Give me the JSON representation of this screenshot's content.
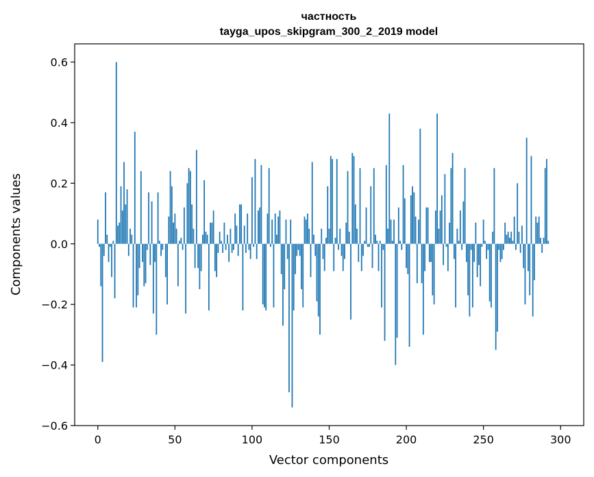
{
  "chart_data": {
    "type": "bar",
    "title_line1": "частность",
    "title_line2": "tayga_upos_skipgram_300_2_2019 model",
    "xlabel": "Vector components",
    "ylabel": "Components values",
    "xlim": [
      -15,
      315
    ],
    "ylim": [
      -0.6,
      0.66
    ],
    "xticks": [
      0,
      50,
      100,
      150,
      200,
      250,
      300
    ],
    "xtick_labels": [
      "0",
      "50",
      "100",
      "150",
      "200",
      "250",
      "300"
    ],
    "yticks": [
      -0.6,
      -0.4,
      -0.2,
      0.0,
      0.2,
      0.4,
      0.6
    ],
    "ytick_labels": [
      "−0.6",
      "−0.4",
      "−0.2",
      "0.0",
      "0.2",
      "0.4",
      "0.6"
    ],
    "bar_color": "#1f77b4",
    "grid": false,
    "values": [
      0.08,
      -0.01,
      -0.14,
      -0.39,
      -0.04,
      0.17,
      0.03,
      -0.06,
      -0.01,
      -0.11,
      0.01,
      -0.18,
      0.6,
      0.06,
      0.07,
      0.19,
      0.11,
      0.27,
      0.13,
      0.18,
      -0.04,
      0.05,
      0.03,
      -0.21,
      0.37,
      -0.21,
      -0.17,
      -0.08,
      0.24,
      -0.06,
      -0.14,
      -0.13,
      -0.02,
      0.17,
      -0.07,
      0.14,
      -0.23,
      -0.06,
      -0.3,
      0.17,
      0.01,
      -0.04,
      -0.02,
      0.0,
      -0.11,
      -0.2,
      0.09,
      0.24,
      0.19,
      0.07,
      0.1,
      0.05,
      -0.14,
      0.01,
      0.02,
      -0.02,
      0.12,
      -0.23,
      0.2,
      0.25,
      0.24,
      0.13,
      0.05,
      -0.08,
      0.31,
      -0.08,
      -0.15,
      -0.09,
      0.03,
      0.21,
      0.04,
      0.03,
      -0.22,
      0.07,
      0.07,
      0.11,
      -0.09,
      -0.11,
      -0.03,
      0.04,
      0.01,
      -0.03,
      0.07,
      -0.02,
      0.03,
      -0.06,
      0.05,
      -0.03,
      -0.02,
      0.1,
      0.06,
      -0.04,
      0.13,
      0.13,
      -0.22,
      0.06,
      -0.03,
      0.1,
      -0.02,
      -0.05,
      0.22,
      -0.01,
      0.28,
      -0.05,
      0.11,
      0.12,
      0.26,
      -0.2,
      -0.21,
      -0.22,
      0.1,
      0.25,
      -0.01,
      0.08,
      -0.21,
      0.1,
      0.03,
      0.09,
      0.11,
      -0.1,
      -0.27,
      -0.15,
      0.08,
      -0.05,
      -0.49,
      0.08,
      -0.54,
      -0.22,
      -0.1,
      -0.04,
      -0.02,
      -0.04,
      -0.15,
      -0.21,
      0.09,
      0.08,
      0.1,
      0.05,
      -0.11,
      0.27,
      0.03,
      -0.04,
      -0.19,
      -0.24,
      -0.3,
      0.05,
      -0.05,
      -0.09,
      0.02,
      0.19,
      0.05,
      0.29,
      0.28,
      -0.09,
      0.02,
      0.28,
      -0.02,
      0.05,
      -0.04,
      -0.09,
      -0.05,
      0.07,
      0.24,
      0.04,
      -0.25,
      0.3,
      0.29,
      0.13,
      0.05,
      -0.06,
      0.25,
      -0.09,
      -0.04,
      0.01,
      0.12,
      -0.01,
      -0.01,
      0.19,
      -0.08,
      0.25,
      0.03,
      0.01,
      -0.09,
      0.01,
      -0.21,
      -0.02,
      -0.32,
      0.26,
      0.05,
      0.43,
      0.08,
      0.01,
      0.08,
      -0.4,
      -0.31,
      0.12,
      0.01,
      -0.02,
      0.26,
      0.15,
      -0.08,
      -0.1,
      -0.34,
      0.16,
      0.19,
      0.17,
      0.09,
      -0.13,
      0.08,
      0.38,
      -0.13,
      -0.3,
      -0.09,
      0.12,
      0.12,
      -0.06,
      -0.06,
      -0.17,
      -0.2,
      0.11,
      0.43,
      0.05,
      0.11,
      0.16,
      -0.07,
      0.23,
      -0.01,
      -0.09,
      0.07,
      0.25,
      0.3,
      -0.05,
      -0.21,
      0.05,
      0.01,
      0.11,
      -0.02,
      0.14,
      0.25,
      -0.06,
      -0.17,
      -0.24,
      -0.02,
      -0.21,
      -0.06,
      0.07,
      -0.11,
      -0.07,
      -0.14,
      -0.01,
      0.08,
      0.01,
      -0.05,
      -0.02,
      -0.19,
      -0.21,
      0.04,
      0.25,
      -0.35,
      -0.29,
      -0.02,
      -0.06,
      -0.05,
      -0.02,
      0.07,
      0.03,
      0.04,
      0.02,
      0.04,
      0.01,
      0.09,
      -0.02,
      0.2,
      0.04,
      -0.03,
      0.06,
      -0.08,
      -0.2,
      0.35,
      -0.09,
      -0.17,
      0.29,
      -0.24,
      -0.12,
      0.09,
      0.07,
      0.09,
      0.02,
      -0.03,
      0.02,
      0.25,
      0.28,
      0.01
    ]
  }
}
